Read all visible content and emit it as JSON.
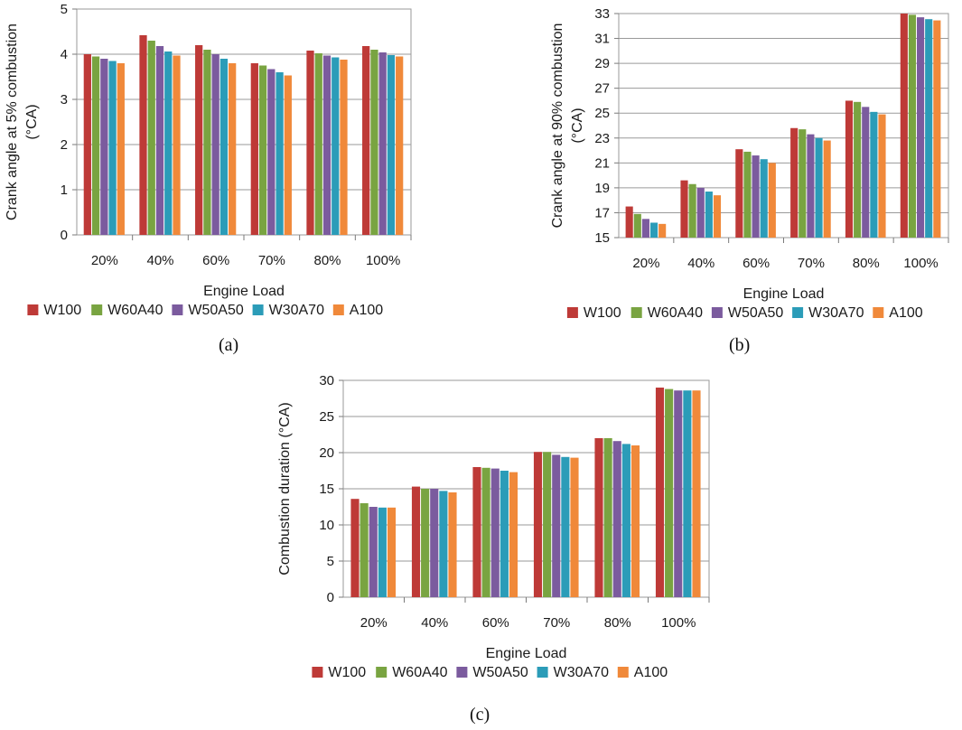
{
  "legend_colors": {
    "W100": "#be3a37",
    "W60A40": "#79a441",
    "W50A50": "#7b5b9e",
    "W30A70": "#2b9cb8",
    "A100": "#f0893a"
  },
  "chart_data": [
    {
      "type": "bar",
      "panel": "a",
      "caption": "(a)",
      "categories": [
        "20%",
        "40%",
        "60%",
        "70%",
        "80%",
        "100%"
      ],
      "xlabel": "Engine Load",
      "ylabel_line1": "Crank angle at 5% combustion",
      "ylabel_line2": "(°CA)",
      "ylim": [
        0,
        5
      ],
      "yticks": [
        0,
        1,
        2,
        3,
        4,
        5
      ],
      "grid": true,
      "legend_position": "bottom",
      "series": [
        {
          "name": "W100",
          "values": [
            4.0,
            4.42,
            4.2,
            3.8,
            4.08,
            4.18
          ]
        },
        {
          "name": "W60A40",
          "values": [
            3.95,
            4.3,
            4.1,
            3.75,
            4.02,
            4.1
          ]
        },
        {
          "name": "W50A50",
          "values": [
            3.9,
            4.18,
            4.0,
            3.67,
            3.97,
            4.04
          ]
        },
        {
          "name": "W30A70",
          "values": [
            3.85,
            4.06,
            3.9,
            3.6,
            3.93,
            3.98
          ]
        },
        {
          "name": "A100",
          "values": [
            3.8,
            3.97,
            3.8,
            3.53,
            3.88,
            3.95
          ]
        }
      ]
    },
    {
      "type": "bar",
      "panel": "b",
      "caption": "(b)",
      "categories": [
        "20%",
        "40%",
        "60%",
        "70%",
        "80%",
        "100%"
      ],
      "xlabel": "Engine Load",
      "ylabel_line1": "Crank angle at 90% combustion",
      "ylabel_line2": "(°CA)",
      "ylim": [
        15,
        33
      ],
      "yticks": [
        15,
        17,
        19,
        21,
        23,
        25,
        27,
        29,
        31,
        33
      ],
      "grid": true,
      "legend_position": "bottom",
      "series": [
        {
          "name": "W100",
          "values": [
            17.5,
            19.6,
            22.1,
            23.8,
            26.0,
            33.0
          ]
        },
        {
          "name": "W60A40",
          "values": [
            16.9,
            19.3,
            21.9,
            23.7,
            25.9,
            32.9
          ]
        },
        {
          "name": "W50A50",
          "values": [
            16.5,
            19.0,
            21.6,
            23.3,
            25.5,
            32.7
          ]
        },
        {
          "name": "W30A70",
          "values": [
            16.2,
            18.7,
            21.3,
            23.0,
            25.1,
            32.55
          ]
        },
        {
          "name": "A100",
          "values": [
            16.1,
            18.4,
            21.0,
            22.8,
            24.9,
            32.45
          ]
        }
      ]
    },
    {
      "type": "bar",
      "panel": "c",
      "caption": "(c)",
      "categories": [
        "20%",
        "40%",
        "60%",
        "70%",
        "80%",
        "100%"
      ],
      "xlabel": "Engine Load",
      "ylabel_line1": "Combustion duration (°CA)",
      "ylabel_line2": "",
      "ylim": [
        0,
        30
      ],
      "yticks": [
        0,
        5,
        10,
        15,
        20,
        25,
        30
      ],
      "grid": true,
      "legend_position": "bottom",
      "series": [
        {
          "name": "W100",
          "values": [
            13.6,
            15.3,
            18.0,
            20.1,
            22.0,
            29.0
          ]
        },
        {
          "name": "W60A40",
          "values": [
            13.0,
            15.0,
            17.9,
            20.1,
            22.0,
            28.8
          ]
        },
        {
          "name": "W50A50",
          "values": [
            12.5,
            15.0,
            17.8,
            19.7,
            21.6,
            28.6
          ]
        },
        {
          "name": "W30A70",
          "values": [
            12.4,
            14.7,
            17.5,
            19.4,
            21.2,
            28.6
          ]
        },
        {
          "name": "A100",
          "values": [
            12.4,
            14.5,
            17.3,
            19.3,
            21.0,
            28.6
          ]
        }
      ]
    }
  ]
}
